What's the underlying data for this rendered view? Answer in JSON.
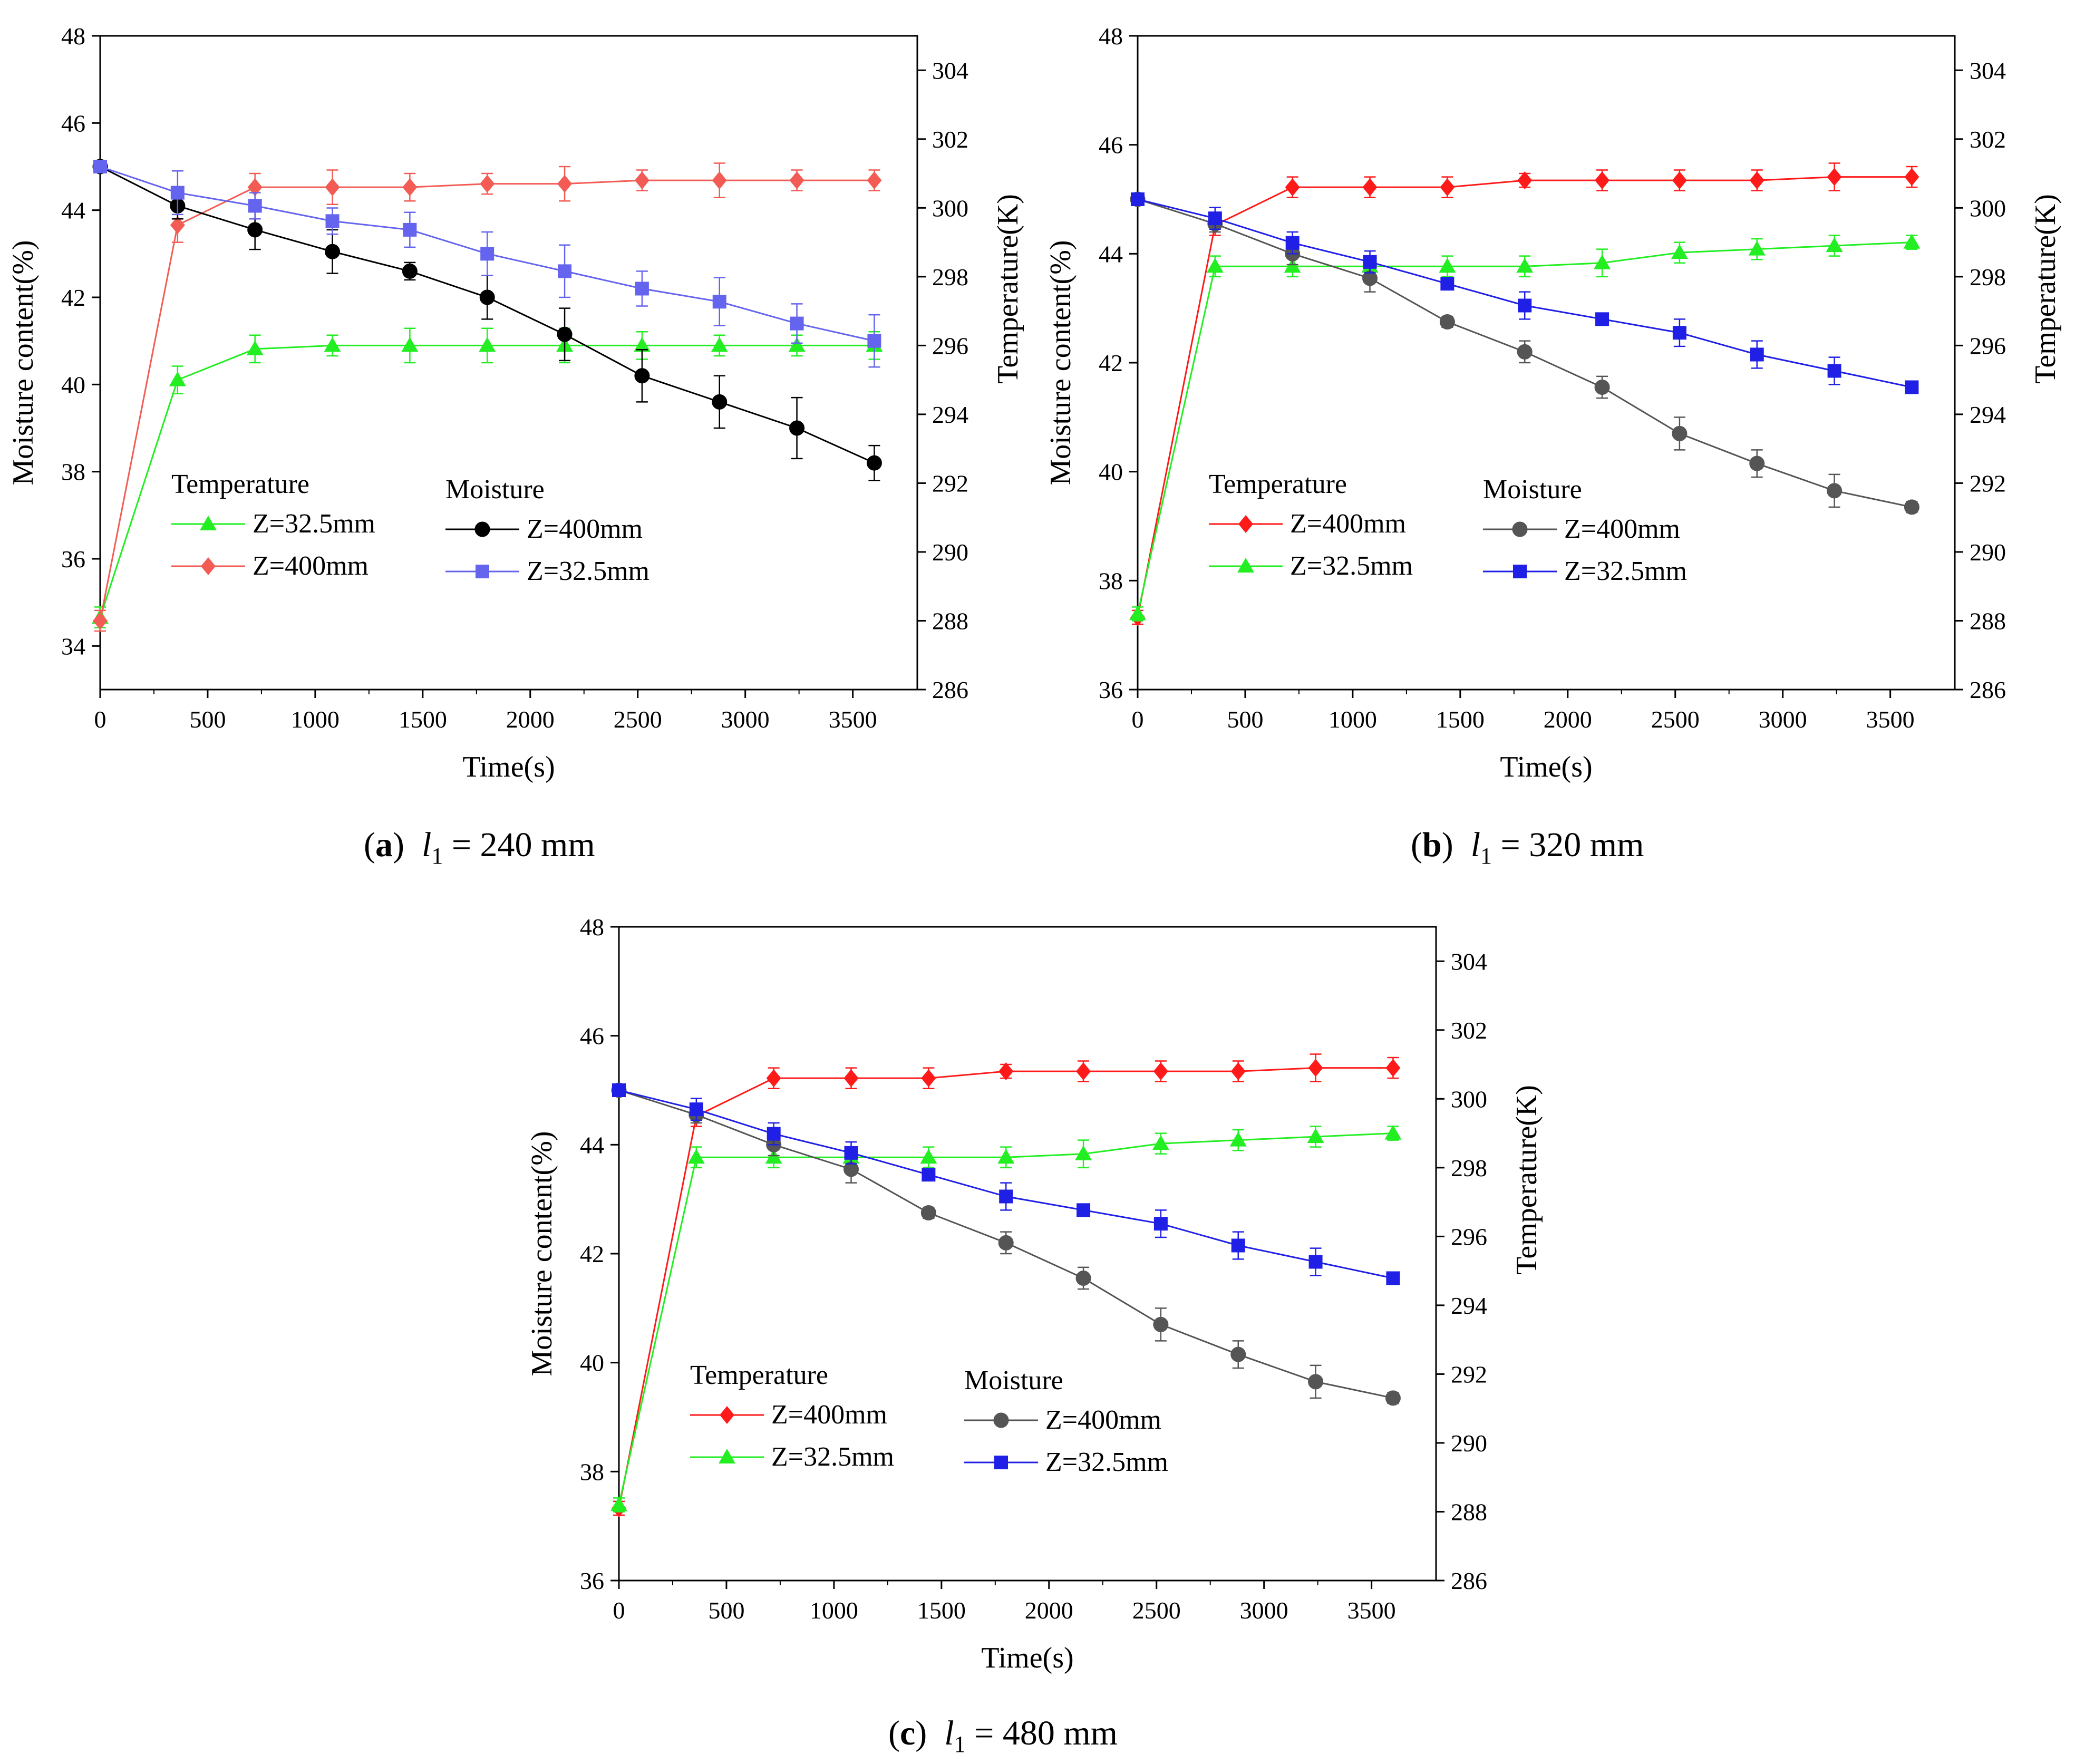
{
  "colors": {
    "red": "#ff1a1a",
    "light_red": "#f25c54",
    "green": "#22ee22",
    "black": "#000000",
    "gray": "#555555",
    "blue": "#1f1fe6",
    "light_blue": "#6464ee",
    "axis": "#000000"
  },
  "panels": [
    {
      "id": "a",
      "caption": {
        "letter": "a",
        "var": "l",
        "sub": "1",
        "value": "= 240 mm"
      },
      "chart_data": {
        "type": "line",
        "xlabel": "Time(s)",
        "ylabel_left": "Moisture content(%)",
        "ylabel_right": "Temperature(K)",
        "xlim": [
          0,
          3800
        ],
        "ylim_left": [
          33,
          48
        ],
        "ylim_right": [
          286,
          305
        ],
        "xticks": [
          0,
          500,
          1000,
          1500,
          2000,
          2500,
          3000,
          3500
        ],
        "yticks_left": [
          34,
          36,
          38,
          40,
          42,
          44,
          46,
          48
        ],
        "yticks_right": [
          286,
          288,
          290,
          292,
          294,
          296,
          298,
          300,
          302,
          304
        ],
        "legend_groups": [
          "Temperature",
          "Moisture"
        ],
        "x": [
          0,
          360,
          720,
          1080,
          1440,
          1800,
          2160,
          2520,
          2880,
          3240,
          3600
        ],
        "series": [
          {
            "name": "Z=32.5mm",
            "group": "Temperature",
            "axis": "right",
            "marker": "triangle",
            "color": "#22ee22",
            "values": [
              288.1,
              295.0,
              295.9,
              296.0,
              296.0,
              296.0,
              296.0,
              296.0,
              296.0,
              296.0,
              296.0
            ],
            "errors": [
              0.3,
              0.4,
              0.4,
              0.3,
              0.5,
              0.5,
              0.5,
              0.4,
              0.3,
              0.3,
              0.4
            ]
          },
          {
            "name": "Z=400mm",
            "group": "Temperature",
            "axis": "right",
            "marker": "diamond",
            "color": "#f25c54",
            "values": [
              288.0,
              299.5,
              300.6,
              300.6,
              300.6,
              300.7,
              300.7,
              300.8,
              300.8,
              300.8,
              300.8
            ],
            "errors": [
              0.3,
              0.5,
              0.4,
              0.5,
              0.4,
              0.3,
              0.5,
              0.3,
              0.5,
              0.3,
              0.3
            ]
          },
          {
            "name": "Z=400mm",
            "group": "Moisture",
            "axis": "left",
            "marker": "circle",
            "color": "#000000",
            "values": [
              45.0,
              44.1,
              43.55,
              43.05,
              42.6,
              42.0,
              41.15,
              40.2,
              39.6,
              39.0,
              38.2
            ],
            "errors": [
              0.1,
              0.3,
              0.45,
              0.5,
              0.2,
              0.5,
              0.6,
              0.6,
              0.6,
              0.7,
              0.4
            ]
          },
          {
            "name": "Z=32.5mm",
            "group": "Moisture",
            "axis": "left",
            "marker": "square",
            "color": "#6464ee",
            "values": [
              45.0,
              44.4,
              44.1,
              43.75,
              43.55,
              43.0,
              42.6,
              42.2,
              41.9,
              41.4,
              41.0
            ],
            "errors": [
              0.1,
              0.5,
              0.3,
              0.3,
              0.4,
              0.5,
              0.6,
              0.4,
              0.55,
              0.45,
              0.6
            ]
          }
        ]
      }
    },
    {
      "id": "b",
      "caption": {
        "letter": "b",
        "var": "l",
        "sub": "1",
        "value": "= 320 mm"
      },
      "chart_data": {
        "type": "line",
        "xlabel": "Time(s)",
        "ylabel_left": "Moisture content(%)",
        "ylabel_right": "Temperature(K)",
        "xlim": [
          0,
          3800
        ],
        "ylim_left": [
          36,
          48
        ],
        "ylim_right": [
          286,
          305
        ],
        "xticks": [
          0,
          500,
          1000,
          1500,
          2000,
          2500,
          3000,
          3500
        ],
        "yticks_left": [
          36,
          38,
          40,
          42,
          44,
          46,
          48
        ],
        "yticks_right": [
          286,
          288,
          290,
          292,
          294,
          296,
          298,
          300,
          302,
          304
        ],
        "legend_groups": [
          "Temperature",
          "Moisture"
        ],
        "x": [
          0,
          360,
          720,
          1080,
          1440,
          1800,
          2160,
          2520,
          2880,
          3240,
          3600
        ],
        "series": [
          {
            "name": "Z=400mm",
            "group": "Temperature",
            "axis": "right",
            "marker": "diamond",
            "color": "#ff1a1a",
            "values": [
              288.1,
              299.5,
              300.6,
              300.6,
              300.6,
              300.8,
              300.8,
              300.8,
              300.8,
              300.9,
              300.9
            ],
            "errors": [
              0.2,
              0.3,
              0.3,
              0.3,
              0.3,
              0.2,
              0.3,
              0.3,
              0.3,
              0.4,
              0.3
            ]
          },
          {
            "name": "Z=32.5mm",
            "group": "Temperature",
            "axis": "right",
            "marker": "triangle",
            "color": "#22ee22",
            "values": [
              288.2,
              298.3,
              298.3,
              298.3,
              298.3,
              298.3,
              298.4,
              298.7,
              298.8,
              298.9,
              299.0
            ],
            "errors": [
              0.2,
              0.3,
              0.3,
              0.3,
              0.3,
              0.3,
              0.4,
              0.3,
              0.3,
              0.3,
              0.2
            ]
          },
          {
            "name": "Z=400mm",
            "group": "Moisture",
            "axis": "left",
            "marker": "circle",
            "color": "#555555",
            "values": [
              45.0,
              44.55,
              44.0,
              43.55,
              42.75,
              42.2,
              41.55,
              40.7,
              40.15,
              39.65,
              39.35
            ],
            "errors": [
              0.05,
              0.15,
              0.2,
              0.25,
              0.1,
              0.2,
              0.2,
              0.3,
              0.25,
              0.3,
              0.1
            ]
          },
          {
            "name": "Z=32.5mm",
            "group": "Moisture",
            "axis": "left",
            "marker": "square",
            "color": "#1f1fe6",
            "values": [
              45.0,
              44.65,
              44.2,
              43.85,
              43.45,
              43.05,
              42.8,
              42.55,
              42.15,
              41.85,
              41.55
            ],
            "errors": [
              0.05,
              0.2,
              0.2,
              0.2,
              0.1,
              0.25,
              0.1,
              0.25,
              0.25,
              0.25,
              0.1
            ]
          }
        ]
      }
    },
    {
      "id": "c",
      "caption": {
        "letter": "c",
        "var": "l",
        "sub": "1",
        "value": "= 480 mm"
      },
      "chart_data": {
        "type": "line",
        "xlabel": "Time(s)",
        "ylabel_left": "Moisture content(%)",
        "ylabel_right": "Temperature(K)",
        "xlim": [
          0,
          3800
        ],
        "ylim_left": [
          36,
          48
        ],
        "ylim_right": [
          286,
          305
        ],
        "xticks": [
          0,
          500,
          1000,
          1500,
          2000,
          2500,
          3000,
          3500
        ],
        "yticks_left": [
          36,
          38,
          40,
          42,
          44,
          46,
          48
        ],
        "yticks_right": [
          286,
          288,
          290,
          292,
          294,
          296,
          298,
          300,
          302,
          304
        ],
        "legend_groups": [
          "Temperature",
          "Moisture"
        ],
        "x": [
          0,
          360,
          720,
          1080,
          1440,
          1800,
          2160,
          2520,
          2880,
          3240,
          3600
        ],
        "series": [
          {
            "name": "Z=400mm",
            "group": "Temperature",
            "axis": "right",
            "marker": "diamond",
            "color": "#ff1a1a",
            "values": [
              288.1,
              299.5,
              300.6,
              300.6,
              300.6,
              300.8,
              300.8,
              300.8,
              300.8,
              300.9,
              300.9
            ],
            "errors": [
              0.2,
              0.3,
              0.3,
              0.3,
              0.3,
              0.2,
              0.3,
              0.3,
              0.3,
              0.4,
              0.3
            ]
          },
          {
            "name": "Z=32.5mm",
            "group": "Temperature",
            "axis": "right",
            "marker": "triangle",
            "color": "#22ee22",
            "values": [
              288.2,
              298.3,
              298.3,
              298.3,
              298.3,
              298.3,
              298.4,
              298.7,
              298.8,
              298.9,
              299.0
            ],
            "errors": [
              0.2,
              0.3,
              0.3,
              0.3,
              0.3,
              0.3,
              0.4,
              0.3,
              0.3,
              0.3,
              0.2
            ]
          },
          {
            "name": "Z=400mm",
            "group": "Moisture",
            "axis": "left",
            "marker": "circle",
            "color": "#555555",
            "values": [
              45.0,
              44.55,
              44.0,
              43.55,
              42.75,
              42.2,
              41.55,
              40.7,
              40.15,
              39.65,
              39.35
            ],
            "errors": [
              0.05,
              0.15,
              0.2,
              0.25,
              0.1,
              0.2,
              0.2,
              0.3,
              0.25,
              0.3,
              0.1
            ]
          },
          {
            "name": "Z=32.5mm",
            "group": "Moisture",
            "axis": "left",
            "marker": "square",
            "color": "#1f1fe6",
            "values": [
              45.0,
              44.65,
              44.2,
              43.85,
              43.45,
              43.05,
              42.8,
              42.55,
              42.15,
              41.85,
              41.55
            ],
            "errors": [
              0.05,
              0.2,
              0.2,
              0.2,
              0.1,
              0.25,
              0.1,
              0.25,
              0.25,
              0.25,
              0.1
            ]
          }
        ]
      }
    }
  ]
}
